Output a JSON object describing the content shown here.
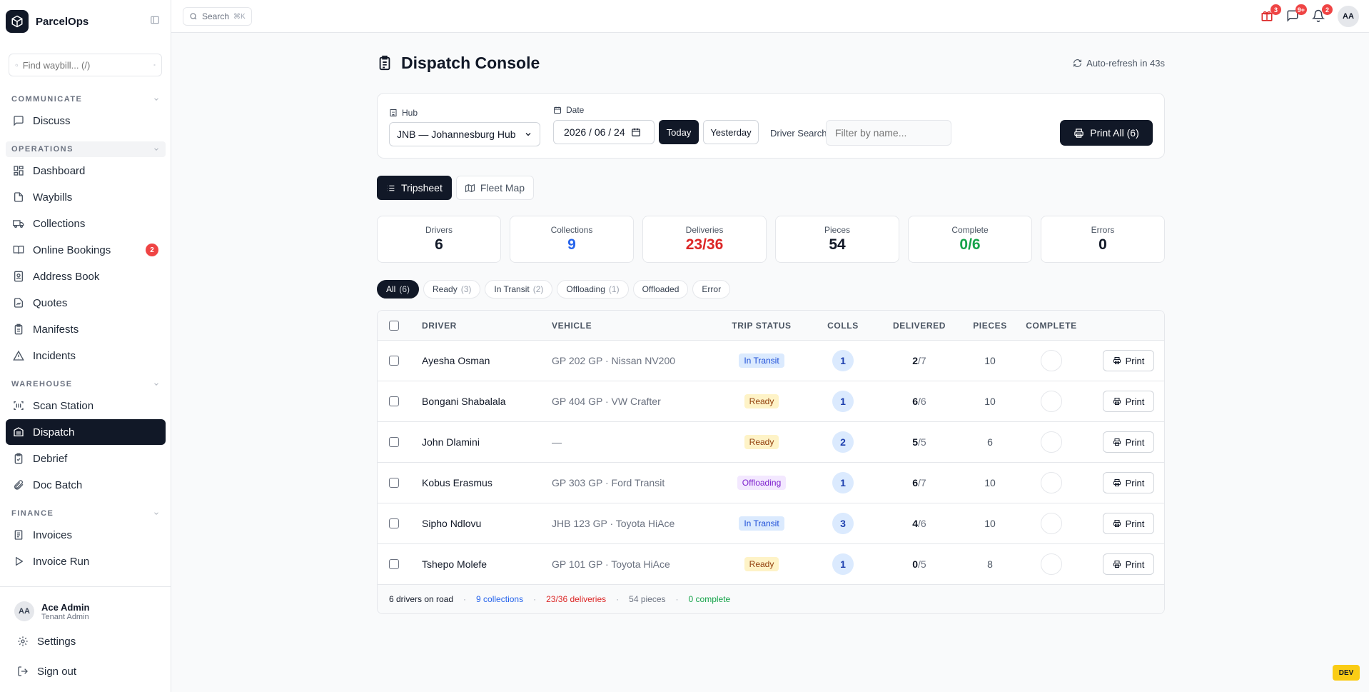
{
  "app": {
    "name": "ParcelOps"
  },
  "sidebar": {
    "search_placeholder": "Find waybill... (/)",
    "sections": {
      "communicate": "COMMUNICATE",
      "operations": "OPERATIONS",
      "warehouse": "WAREHOUSE",
      "finance": "FINANCE"
    },
    "items": {
      "discuss": "Discuss",
      "dashboard": "Dashboard",
      "waybills": "Waybills",
      "collections": "Collections",
      "online_bookings": "Online Bookings",
      "online_bookings_badge": "2",
      "address_book": "Address Book",
      "quotes": "Quotes",
      "manifests": "Manifests",
      "incidents": "Incidents",
      "scan_station": "Scan Station",
      "dispatch": "Dispatch",
      "debrief": "Debrief",
      "doc_batch": "Doc Batch",
      "invoices": "Invoices",
      "invoice_run": "Invoice Run"
    },
    "user": {
      "initials": "AA",
      "name": "Ace Admin",
      "role": "Tenant Admin"
    },
    "settings": "Settings",
    "sign_out": "Sign out"
  },
  "topbar": {
    "search_label": "Search",
    "search_shortcut": "⌘K",
    "badges": {
      "packages": "3",
      "messages": "9+",
      "notifications": "2"
    },
    "avatar": "AA"
  },
  "page": {
    "title": "Dispatch Console",
    "auto_refresh": "Auto-refresh in 43s"
  },
  "filters": {
    "hub_label": "Hub",
    "hub_value": "JNB — Johannesburg Hub",
    "date_label": "Date",
    "date_value": "2026 / 06 / 24",
    "today": "Today",
    "yesterday": "Yesterday",
    "driver_search_label": "Driver Search",
    "driver_search_placeholder": "Filter by name...",
    "print_all": "Print All (6)"
  },
  "view_tabs": {
    "tripsheet": "Tripsheet",
    "fleet_map": "Fleet Map"
  },
  "stats": {
    "drivers": {
      "label": "Drivers",
      "value": "6",
      "color": "#111827"
    },
    "collections": {
      "label": "Collections",
      "value": "9",
      "color": "#2563eb"
    },
    "deliveries": {
      "label": "Deliveries",
      "value": "23/36",
      "color": "#dc2626"
    },
    "pieces": {
      "label": "Pieces",
      "value": "54",
      "color": "#111827"
    },
    "complete": {
      "label": "Complete",
      "value": "0/6",
      "color": "#16a34a"
    },
    "errors": {
      "label": "Errors",
      "value": "0",
      "color": "#111827"
    }
  },
  "status_tabs": [
    {
      "label": "All",
      "count": "(6)"
    },
    {
      "label": "Ready",
      "count": "(3)"
    },
    {
      "label": "In Transit",
      "count": "(2)"
    },
    {
      "label": "Offloading",
      "count": "(1)"
    },
    {
      "label": "Offloaded",
      "count": ""
    },
    {
      "label": "Error",
      "count": ""
    }
  ],
  "table": {
    "columns": {
      "driver": "DRIVER",
      "vehicle": "VEHICLE",
      "trip_status": "TRIP STATUS",
      "colls": "COLLS",
      "delivered": "DELIVERED",
      "pieces": "PIECES",
      "complete": "COMPLETE"
    },
    "print_label": "Print",
    "rows": [
      {
        "driver": "Ayesha Osman",
        "vehicle": "GP 202 GP · Nissan NV200",
        "status": "In Transit",
        "status_kind": "transit",
        "colls": "1",
        "delivered": "2",
        "delivered_total": "/7",
        "pieces": "10"
      },
      {
        "driver": "Bongani Shabalala",
        "vehicle": "GP 404 GP · VW Crafter",
        "status": "Ready",
        "status_kind": "ready",
        "colls": "1",
        "delivered": "6",
        "delivered_total": "/6",
        "pieces": "10"
      },
      {
        "driver": "John Dlamini",
        "vehicle": "—",
        "status": "Ready",
        "status_kind": "ready",
        "colls": "2",
        "delivered": "5",
        "delivered_total": "/5",
        "pieces": "6"
      },
      {
        "driver": "Kobus Erasmus",
        "vehicle": "GP 303 GP · Ford Transit",
        "status": "Offloading",
        "status_kind": "offloading",
        "colls": "1",
        "delivered": "6",
        "delivered_total": "/7",
        "pieces": "10"
      },
      {
        "driver": "Sipho Ndlovu",
        "vehicle": "JHB 123 GP · Toyota HiAce",
        "status": "In Transit",
        "status_kind": "transit",
        "colls": "3",
        "delivered": "4",
        "delivered_total": "/6",
        "pieces": "10"
      },
      {
        "driver": "Tshepo Molefe",
        "vehicle": "GP 101 GP · Toyota HiAce",
        "status": "Ready",
        "status_kind": "ready",
        "colls": "1",
        "delivered": "0",
        "delivered_total": "/5",
        "pieces": "8"
      }
    ],
    "footer": {
      "drivers": "6 drivers on road",
      "collections": "9 collections",
      "deliveries": "23/36 deliveries",
      "pieces": "54 pieces",
      "complete": "0 complete"
    }
  },
  "dev_badge": "DEV"
}
